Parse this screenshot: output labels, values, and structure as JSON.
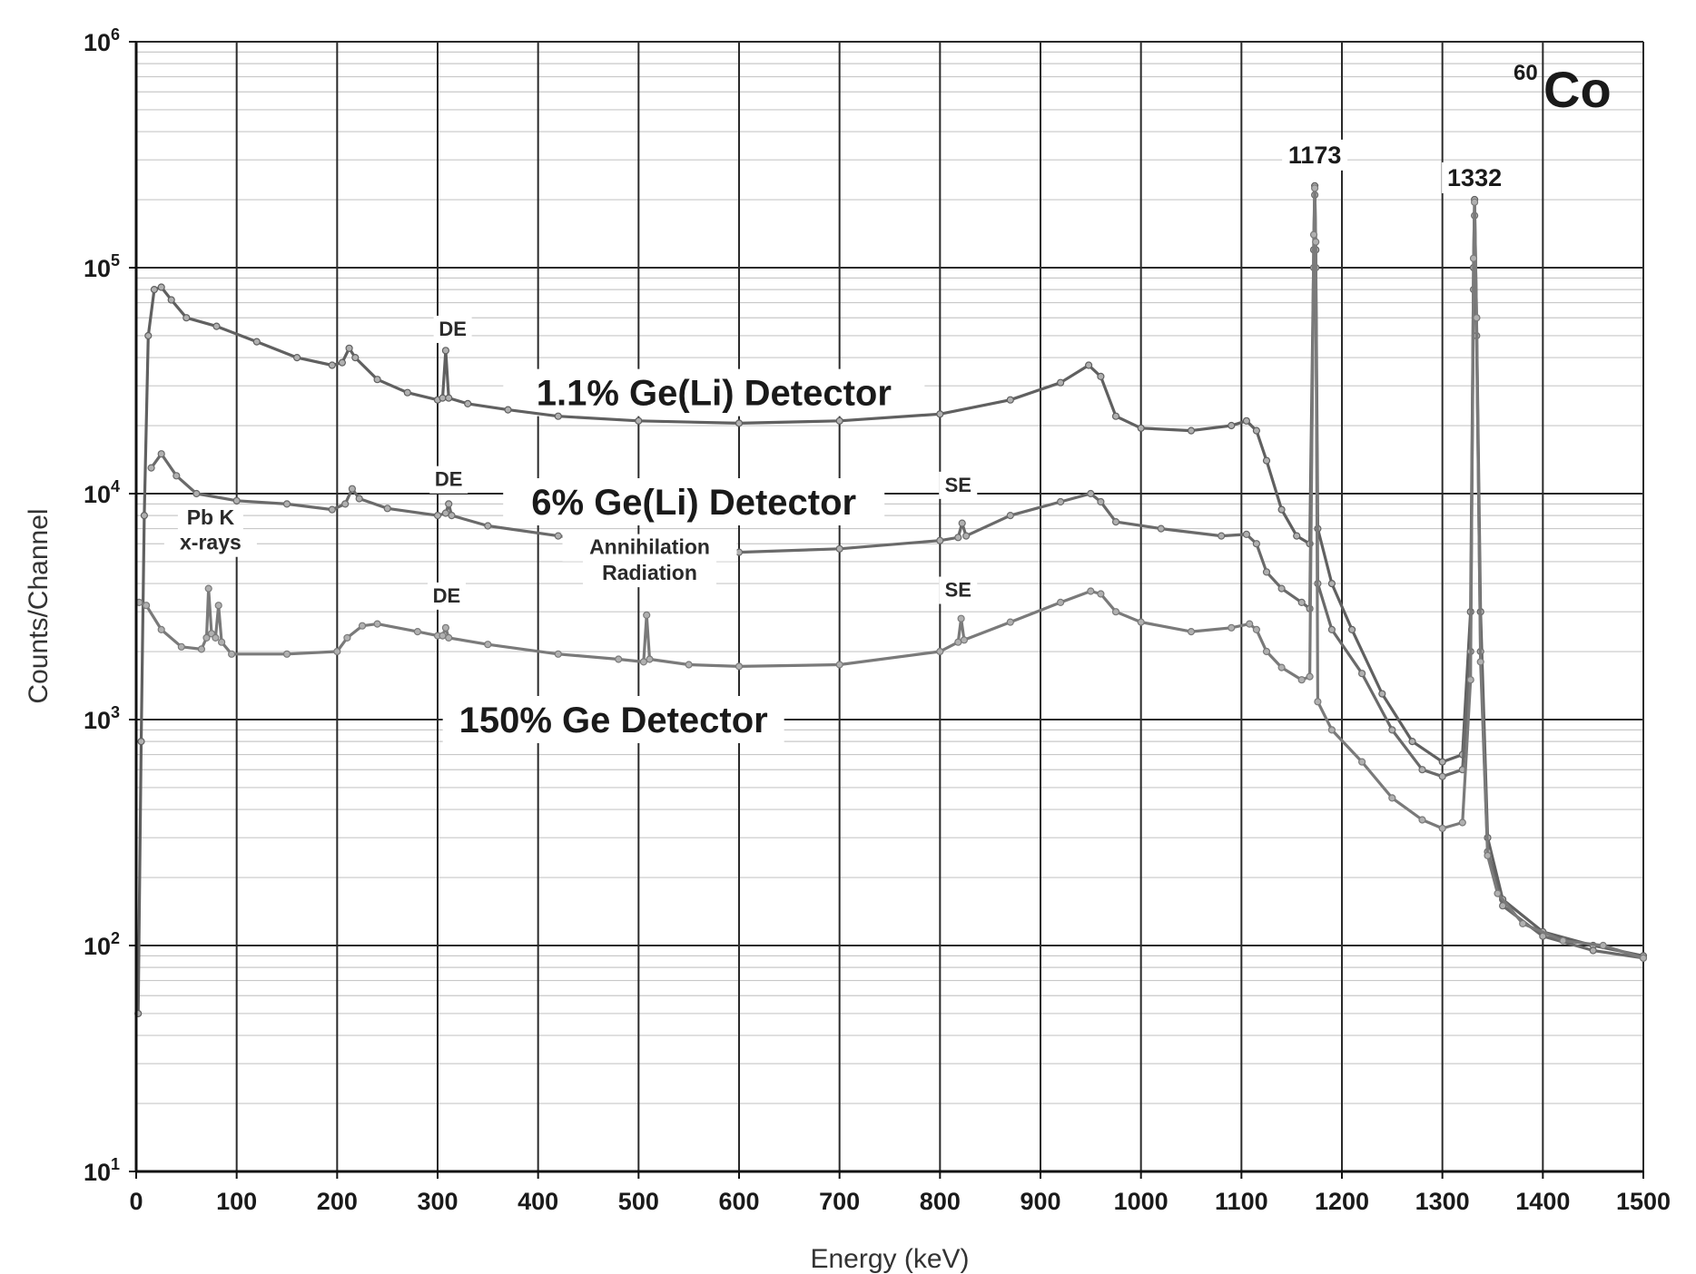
{
  "chart_data": {
    "type": "line",
    "xlabel": "Energy (keV)",
    "ylabel": "Counts/Channel",
    "xlim": [
      0,
      1500
    ],
    "ylim": [
      10,
      1000000
    ],
    "yscale": "log",
    "grid": true,
    "x_ticks": [
      "0",
      "100",
      "200",
      "300",
      "400",
      "500",
      "600",
      "700",
      "800",
      "900",
      "1000",
      "1100",
      "1200",
      "1300",
      "1400",
      "1500"
    ],
    "y_ticks": [
      {
        "value": 10,
        "base": "10",
        "exp": "1"
      },
      {
        "value": 100,
        "base": "10",
        "exp": "2"
      },
      {
        "value": 1000,
        "base": "10",
        "exp": "3"
      },
      {
        "value": 10000,
        "base": "10",
        "exp": "4"
      },
      {
        "value": 100000,
        "base": "10",
        "exp": "5"
      },
      {
        "value": 1000000,
        "base": "10",
        "exp": "6"
      }
    ],
    "isotope": {
      "mass": "60",
      "symbol": "Co"
    },
    "series": [
      {
        "name": "1.1% Ge(Li) Detector",
        "color": "#606060",
        "points": [
          [
            2,
            50
          ],
          [
            5,
            800
          ],
          [
            8,
            8000
          ],
          [
            12,
            50000
          ],
          [
            18,
            80000
          ],
          [
            25,
            82000
          ],
          [
            35,
            72000
          ],
          [
            50,
            60000
          ],
          [
            80,
            55000
          ],
          [
            120,
            47000
          ],
          [
            160,
            40000
          ],
          [
            195,
            37000
          ],
          [
            205,
            38000
          ],
          [
            212,
            44000
          ],
          [
            218,
            40000
          ],
          [
            240,
            32000
          ],
          [
            270,
            28000
          ],
          [
            300,
            26000
          ],
          [
            305,
            26500
          ],
          [
            308,
            43000
          ],
          [
            311,
            26500
          ],
          [
            330,
            25000
          ],
          [
            370,
            23500
          ],
          [
            420,
            22000
          ],
          [
            500,
            21000
          ],
          [
            600,
            20500
          ],
          [
            700,
            21000
          ],
          [
            800,
            22500
          ],
          [
            870,
            26000
          ],
          [
            920,
            31000
          ],
          [
            948,
            37000
          ],
          [
            960,
            33000
          ],
          [
            975,
            22000
          ],
          [
            1000,
            19500
          ],
          [
            1050,
            19000
          ],
          [
            1090,
            20000
          ],
          [
            1105,
            21000
          ],
          [
            1115,
            19000
          ],
          [
            1125,
            14000
          ],
          [
            1140,
            8500
          ],
          [
            1155,
            6500
          ],
          [
            1168,
            6000
          ],
          [
            1172,
            120000
          ],
          [
            1173,
            230000
          ],
          [
            1174,
            120000
          ],
          [
            1176,
            7000
          ],
          [
            1190,
            4000
          ],
          [
            1210,
            2500
          ],
          [
            1240,
            1300
          ],
          [
            1270,
            800
          ],
          [
            1300,
            650
          ],
          [
            1320,
            700
          ],
          [
            1328,
            3000
          ],
          [
            1331,
            100000
          ],
          [
            1332,
            200000
          ],
          [
            1334,
            60000
          ],
          [
            1338,
            3000
          ],
          [
            1345,
            300
          ],
          [
            1360,
            160
          ],
          [
            1400,
            115
          ],
          [
            1450,
            100
          ],
          [
            1500,
            90
          ]
        ]
      },
      {
        "name": "6% Ge(Li) Detector",
        "color": "#6a6a6a",
        "points": [
          [
            15,
            13000
          ],
          [
            25,
            15000
          ],
          [
            40,
            12000
          ],
          [
            60,
            10000
          ],
          [
            100,
            9300
          ],
          [
            150,
            9000
          ],
          [
            195,
            8500
          ],
          [
            208,
            9000
          ],
          [
            215,
            10500
          ],
          [
            222,
            9500
          ],
          [
            250,
            8600
          ],
          [
            300,
            8000
          ],
          [
            308,
            8200
          ],
          [
            311,
            9000
          ],
          [
            314,
            8000
          ],
          [
            350,
            7200
          ],
          [
            420,
            6500
          ],
          [
            500,
            5800
          ],
          [
            600,
            5500
          ],
          [
            700,
            5700
          ],
          [
            800,
            6200
          ],
          [
            818,
            6400
          ],
          [
            822,
            7400
          ],
          [
            826,
            6500
          ],
          [
            870,
            8000
          ],
          [
            920,
            9200
          ],
          [
            950,
            10000
          ],
          [
            960,
            9200
          ],
          [
            975,
            7500
          ],
          [
            1020,
            7000
          ],
          [
            1080,
            6500
          ],
          [
            1105,
            6600
          ],
          [
            1115,
            6000
          ],
          [
            1125,
            4500
          ],
          [
            1140,
            3800
          ],
          [
            1160,
            3300
          ],
          [
            1168,
            3100
          ],
          [
            1172,
            100000
          ],
          [
            1173,
            210000
          ],
          [
            1174,
            100000
          ],
          [
            1176,
            4000
          ],
          [
            1190,
            2500
          ],
          [
            1220,
            1600
          ],
          [
            1250,
            900
          ],
          [
            1280,
            600
          ],
          [
            1300,
            560
          ],
          [
            1320,
            600
          ],
          [
            1328,
            2000
          ],
          [
            1331,
            80000
          ],
          [
            1332,
            170000
          ],
          [
            1334,
            50000
          ],
          [
            1338,
            2000
          ],
          [
            1345,
            260
          ],
          [
            1360,
            150
          ],
          [
            1400,
            110
          ],
          [
            1450,
            95
          ],
          [
            1500,
            88
          ]
        ]
      },
      {
        "name": "150% Ge Detector",
        "color": "#7a7a7a",
        "points": [
          [
            3,
            3300
          ],
          [
            10,
            3200
          ],
          [
            25,
            2500
          ],
          [
            45,
            2100
          ],
          [
            65,
            2050
          ],
          [
            70,
            2300
          ],
          [
            72,
            3800
          ],
          [
            75,
            2400
          ],
          [
            79,
            2300
          ],
          [
            82,
            3200
          ],
          [
            85,
            2200
          ],
          [
            95,
            1950
          ],
          [
            150,
            1950
          ],
          [
            200,
            2000
          ],
          [
            210,
            2300
          ],
          [
            225,
            2600
          ],
          [
            240,
            2650
          ],
          [
            280,
            2450
          ],
          [
            300,
            2350
          ],
          [
            305,
            2350
          ],
          [
            308,
            2550
          ],
          [
            311,
            2300
          ],
          [
            350,
            2150
          ],
          [
            420,
            1950
          ],
          [
            480,
            1850
          ],
          [
            505,
            1800
          ],
          [
            508,
            2900
          ],
          [
            511,
            1850
          ],
          [
            550,
            1750
          ],
          [
            600,
            1720
          ],
          [
            700,
            1750
          ],
          [
            800,
            2000
          ],
          [
            818,
            2200
          ],
          [
            821,
            2800
          ],
          [
            824,
            2250
          ],
          [
            870,
            2700
          ],
          [
            920,
            3300
          ],
          [
            950,
            3700
          ],
          [
            960,
            3600
          ],
          [
            975,
            3000
          ],
          [
            1000,
            2700
          ],
          [
            1050,
            2450
          ],
          [
            1090,
            2550
          ],
          [
            1108,
            2650
          ],
          [
            1115,
            2500
          ],
          [
            1125,
            2000
          ],
          [
            1140,
            1700
          ],
          [
            1160,
            1500
          ],
          [
            1168,
            1550
          ],
          [
            1172,
            140000
          ],
          [
            1173,
            225000
          ],
          [
            1174,
            130000
          ],
          [
            1176,
            1200
          ],
          [
            1190,
            900
          ],
          [
            1220,
            650
          ],
          [
            1250,
            450
          ],
          [
            1280,
            360
          ],
          [
            1300,
            330
          ],
          [
            1320,
            350
          ],
          [
            1328,
            1500
          ],
          [
            1331,
            110000
          ],
          [
            1332,
            195000
          ],
          [
            1334,
            60000
          ],
          [
            1338,
            1800
          ],
          [
            1345,
            250
          ],
          [
            1355,
            170
          ],
          [
            1380,
            125
          ],
          [
            1420,
            105
          ],
          [
            1460,
            100
          ],
          [
            1500,
            88
          ]
        ]
      }
    ],
    "annotations": [
      {
        "text": "1173",
        "x": 1173,
        "y": 290000,
        "class": "peak-label"
      },
      {
        "text": "1332",
        "x": 1332,
        "y": 230000,
        "class": "peak-label"
      },
      {
        "text": "DE",
        "x": 315,
        "y": 50000,
        "class": "annot"
      },
      {
        "text": "DE",
        "x": 311,
        "y": 10800,
        "class": "annot"
      },
      {
        "text": "SE",
        "x": 818,
        "y": 10200,
        "class": "annot"
      },
      {
        "text": "DE",
        "x": 309,
        "y": 3300,
        "class": "annot"
      },
      {
        "text": "SE",
        "x": 818,
        "y": 3500,
        "class": "annot"
      },
      {
        "text": "Pb K",
        "x": 74,
        "y": 7300,
        "class": "annot-md"
      },
      {
        "text": "x-rays",
        "x": 74,
        "y": 5650,
        "class": "annot-md"
      },
      {
        "text": "Annihilation",
        "x": 511,
        "y": 5400,
        "class": "annot-md"
      },
      {
        "text": "Radiation",
        "x": 511,
        "y": 4150,
        "class": "annot-md"
      }
    ]
  }
}
